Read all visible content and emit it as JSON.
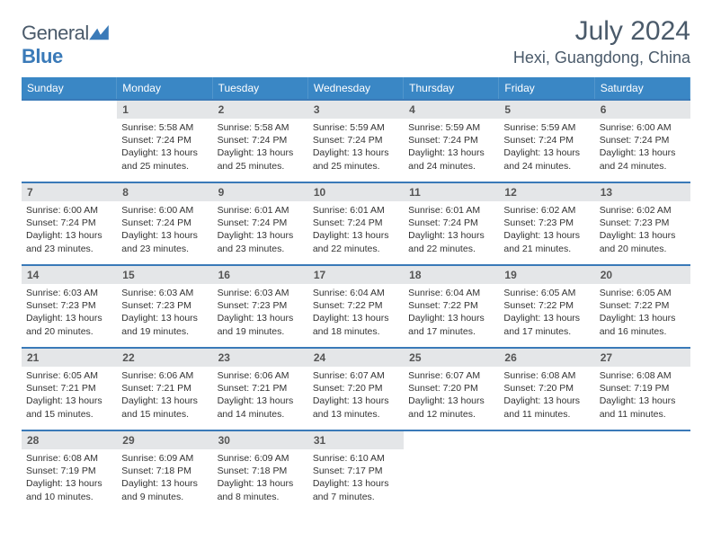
{
  "logo": {
    "text1": "General",
    "text2": "Blue"
  },
  "title": "July 2024",
  "location": "Hexi, Guangdong, China",
  "colors": {
    "header_bg": "#3a87c5",
    "header_text": "#ffffff",
    "daynum_bg": "#e4e6e8",
    "daynum_text": "#555555",
    "body_text": "#333333",
    "title_text": "#4a5a6a",
    "rule": "#3a7ab8",
    "page_bg": "#ffffff"
  },
  "typography": {
    "title_fontsize": 30,
    "location_fontsize": 18,
    "dayhead_fontsize": 12,
    "daynum_fontsize": 12,
    "info_fontsize": 10.5
  },
  "dayNames": [
    "Sunday",
    "Monday",
    "Tuesday",
    "Wednesday",
    "Thursday",
    "Friday",
    "Saturday"
  ],
  "weeks": [
    [
      null,
      {
        "n": "1",
        "sr": "5:58 AM",
        "ss": "7:24 PM",
        "dl": "13 hours and 25 minutes."
      },
      {
        "n": "2",
        "sr": "5:58 AM",
        "ss": "7:24 PM",
        "dl": "13 hours and 25 minutes."
      },
      {
        "n": "3",
        "sr": "5:59 AM",
        "ss": "7:24 PM",
        "dl": "13 hours and 25 minutes."
      },
      {
        "n": "4",
        "sr": "5:59 AM",
        "ss": "7:24 PM",
        "dl": "13 hours and 24 minutes."
      },
      {
        "n": "5",
        "sr": "5:59 AM",
        "ss": "7:24 PM",
        "dl": "13 hours and 24 minutes."
      },
      {
        "n": "6",
        "sr": "6:00 AM",
        "ss": "7:24 PM",
        "dl": "13 hours and 24 minutes."
      }
    ],
    [
      {
        "n": "7",
        "sr": "6:00 AM",
        "ss": "7:24 PM",
        "dl": "13 hours and 23 minutes."
      },
      {
        "n": "8",
        "sr": "6:00 AM",
        "ss": "7:24 PM",
        "dl": "13 hours and 23 minutes."
      },
      {
        "n": "9",
        "sr": "6:01 AM",
        "ss": "7:24 PM",
        "dl": "13 hours and 23 minutes."
      },
      {
        "n": "10",
        "sr": "6:01 AM",
        "ss": "7:24 PM",
        "dl": "13 hours and 22 minutes."
      },
      {
        "n": "11",
        "sr": "6:01 AM",
        "ss": "7:24 PM",
        "dl": "13 hours and 22 minutes."
      },
      {
        "n": "12",
        "sr": "6:02 AM",
        "ss": "7:23 PM",
        "dl": "13 hours and 21 minutes."
      },
      {
        "n": "13",
        "sr": "6:02 AM",
        "ss": "7:23 PM",
        "dl": "13 hours and 20 minutes."
      }
    ],
    [
      {
        "n": "14",
        "sr": "6:03 AM",
        "ss": "7:23 PM",
        "dl": "13 hours and 20 minutes."
      },
      {
        "n": "15",
        "sr": "6:03 AM",
        "ss": "7:23 PM",
        "dl": "13 hours and 19 minutes."
      },
      {
        "n": "16",
        "sr": "6:03 AM",
        "ss": "7:23 PM",
        "dl": "13 hours and 19 minutes."
      },
      {
        "n": "17",
        "sr": "6:04 AM",
        "ss": "7:22 PM",
        "dl": "13 hours and 18 minutes."
      },
      {
        "n": "18",
        "sr": "6:04 AM",
        "ss": "7:22 PM",
        "dl": "13 hours and 17 minutes."
      },
      {
        "n": "19",
        "sr": "6:05 AM",
        "ss": "7:22 PM",
        "dl": "13 hours and 17 minutes."
      },
      {
        "n": "20",
        "sr": "6:05 AM",
        "ss": "7:22 PM",
        "dl": "13 hours and 16 minutes."
      }
    ],
    [
      {
        "n": "21",
        "sr": "6:05 AM",
        "ss": "7:21 PM",
        "dl": "13 hours and 15 minutes."
      },
      {
        "n": "22",
        "sr": "6:06 AM",
        "ss": "7:21 PM",
        "dl": "13 hours and 15 minutes."
      },
      {
        "n": "23",
        "sr": "6:06 AM",
        "ss": "7:21 PM",
        "dl": "13 hours and 14 minutes."
      },
      {
        "n": "24",
        "sr": "6:07 AM",
        "ss": "7:20 PM",
        "dl": "13 hours and 13 minutes."
      },
      {
        "n": "25",
        "sr": "6:07 AM",
        "ss": "7:20 PM",
        "dl": "13 hours and 12 minutes."
      },
      {
        "n": "26",
        "sr": "6:08 AM",
        "ss": "7:20 PM",
        "dl": "13 hours and 11 minutes."
      },
      {
        "n": "27",
        "sr": "6:08 AM",
        "ss": "7:19 PM",
        "dl": "13 hours and 11 minutes."
      }
    ],
    [
      {
        "n": "28",
        "sr": "6:08 AM",
        "ss": "7:19 PM",
        "dl": "13 hours and 10 minutes."
      },
      {
        "n": "29",
        "sr": "6:09 AM",
        "ss": "7:18 PM",
        "dl": "13 hours and 9 minutes."
      },
      {
        "n": "30",
        "sr": "6:09 AM",
        "ss": "7:18 PM",
        "dl": "13 hours and 8 minutes."
      },
      {
        "n": "31",
        "sr": "6:10 AM",
        "ss": "7:17 PM",
        "dl": "13 hours and 7 minutes."
      },
      null,
      null,
      null
    ]
  ],
  "labels": {
    "sunrise": "Sunrise:",
    "sunset": "Sunset:",
    "daylight": "Daylight:"
  }
}
